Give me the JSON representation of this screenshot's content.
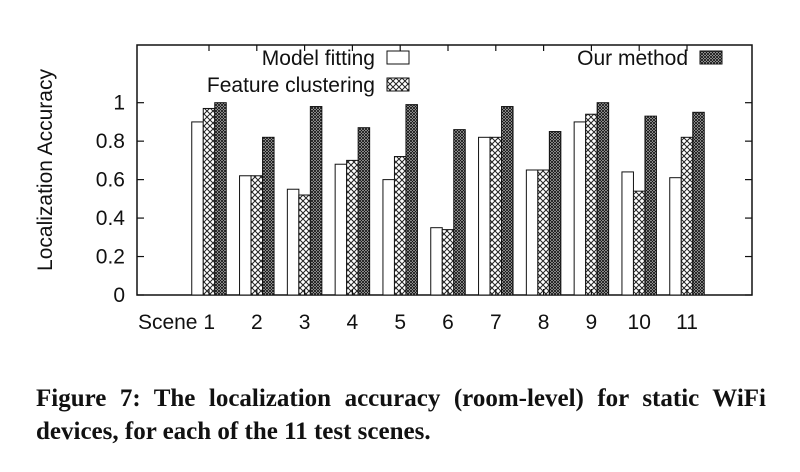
{
  "chart_data": {
    "type": "bar",
    "ylabel": "Localization Accuracy",
    "xlabel": "",
    "ylim": [
      0,
      1.3
    ],
    "yticks": [
      0,
      0.2,
      0.4,
      0.6,
      0.8,
      1
    ],
    "ytick_labels": [
      "0",
      "0.2",
      "0.4",
      "0.6",
      "0.8",
      "1"
    ],
    "categories": [
      "Scene 1",
      "2",
      "3",
      "4",
      "5",
      "6",
      "7",
      "8",
      "9",
      "10",
      "11"
    ],
    "series": [
      {
        "name": "Model fitting",
        "pattern": "plain",
        "values": [
          0.9,
          0.62,
          0.55,
          0.68,
          0.6,
          0.35,
          0.82,
          0.65,
          0.9,
          0.64,
          0.61
        ]
      },
      {
        "name": "Feature clustering",
        "pattern": "crosshatch",
        "values": [
          0.97,
          0.62,
          0.52,
          0.7,
          0.72,
          0.34,
          0.82,
          0.65,
          0.94,
          0.54,
          0.82
        ]
      },
      {
        "name": "Our method",
        "pattern": "dense-hatch",
        "values": [
          1.0,
          0.82,
          0.98,
          0.87,
          0.99,
          0.86,
          0.98,
          0.85,
          1.0,
          0.93,
          0.95
        ]
      }
    ],
    "legend": "top",
    "grid": false
  },
  "caption": "Figure 7:  The localization accuracy (room-level) for static WiFi devices, for each of the 11 test scenes."
}
